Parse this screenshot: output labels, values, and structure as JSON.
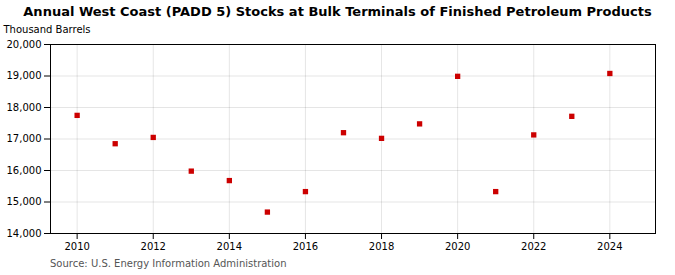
{
  "chart_data": {
    "type": "scatter",
    "title": "Annual West Coast (PADD 5) Stocks at Bulk Terminals of Finished Petroleum Products",
    "ylabel": "Thousand Barrels",
    "source": "Source: U.S. Energy Information Administration",
    "x": [
      2010,
      2011,
      2012,
      2013,
      2014,
      2015,
      2016,
      2017,
      2018,
      2019,
      2020,
      2021,
      2022,
      2023,
      2024
    ],
    "values": [
      17750,
      16850,
      17050,
      15980,
      15680,
      14680,
      15330,
      17200,
      17020,
      17480,
      18990,
      15330,
      17130,
      17720,
      19080
    ],
    "color": "#cc0000",
    "marker": "square",
    "xlim": [
      2009.3,
      2025.2
    ],
    "xticks": [
      2010,
      2012,
      2014,
      2016,
      2018,
      2020,
      2022,
      2024
    ],
    "ylim": [
      14000,
      20000
    ],
    "yticks": [
      {
        "value": 14000,
        "label": "14,000"
      },
      {
        "value": 15000,
        "label": "15,000"
      },
      {
        "value": 16000,
        "label": "16,000"
      },
      {
        "value": 17000,
        "label": "17,000"
      },
      {
        "value": 18000,
        "label": "18,000"
      },
      {
        "value": 19000,
        "label": "19,000"
      },
      {
        "value": 20000,
        "label": "20,000"
      }
    ],
    "grid": true
  }
}
